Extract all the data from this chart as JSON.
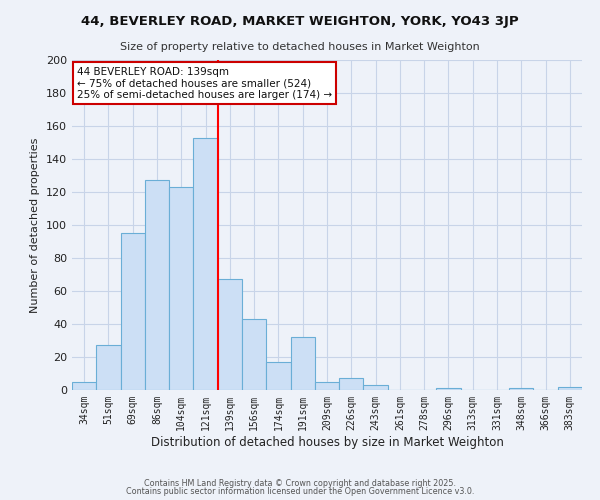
{
  "title1": "44, BEVERLEY ROAD, MARKET WEIGHTON, YORK, YO43 3JP",
  "title2": "Size of property relative to detached houses in Market Weighton",
  "xlabel": "Distribution of detached houses by size in Market Weighton",
  "ylabel": "Number of detached properties",
  "categories": [
    "34sqm",
    "51sqm",
    "69sqm",
    "86sqm",
    "104sqm",
    "121sqm",
    "139sqm",
    "156sqm",
    "174sqm",
    "191sqm",
    "209sqm",
    "226sqm",
    "243sqm",
    "261sqm",
    "278sqm",
    "296sqm",
    "313sqm",
    "331sqm",
    "348sqm",
    "366sqm",
    "383sqm"
  ],
  "values": [
    5,
    27,
    95,
    127,
    123,
    153,
    67,
    43,
    17,
    32,
    5,
    7,
    3,
    0,
    0,
    1,
    0,
    0,
    1,
    0,
    2
  ],
  "bar_color": "#ccdff5",
  "bar_edge_color": "#6aaed6",
  "annotation_title": "44 BEVERLEY ROAD: 139sqm",
  "annotation_line1": "← 75% of detached houses are smaller (524)",
  "annotation_line2": "25% of semi-detached houses are larger (174) →",
  "annotation_box_color": "#ffffff",
  "annotation_box_edge": "#cc0000",
  "grid_color": "#c8d4e8",
  "background_color": "#eef2f9",
  "footer1": "Contains HM Land Registry data © Crown copyright and database right 2025.",
  "footer2": "Contains public sector information licensed under the Open Government Licence v3.0.",
  "ylim": [
    0,
    200
  ],
  "yticks": [
    0,
    20,
    40,
    60,
    80,
    100,
    120,
    140,
    160,
    180,
    200
  ]
}
